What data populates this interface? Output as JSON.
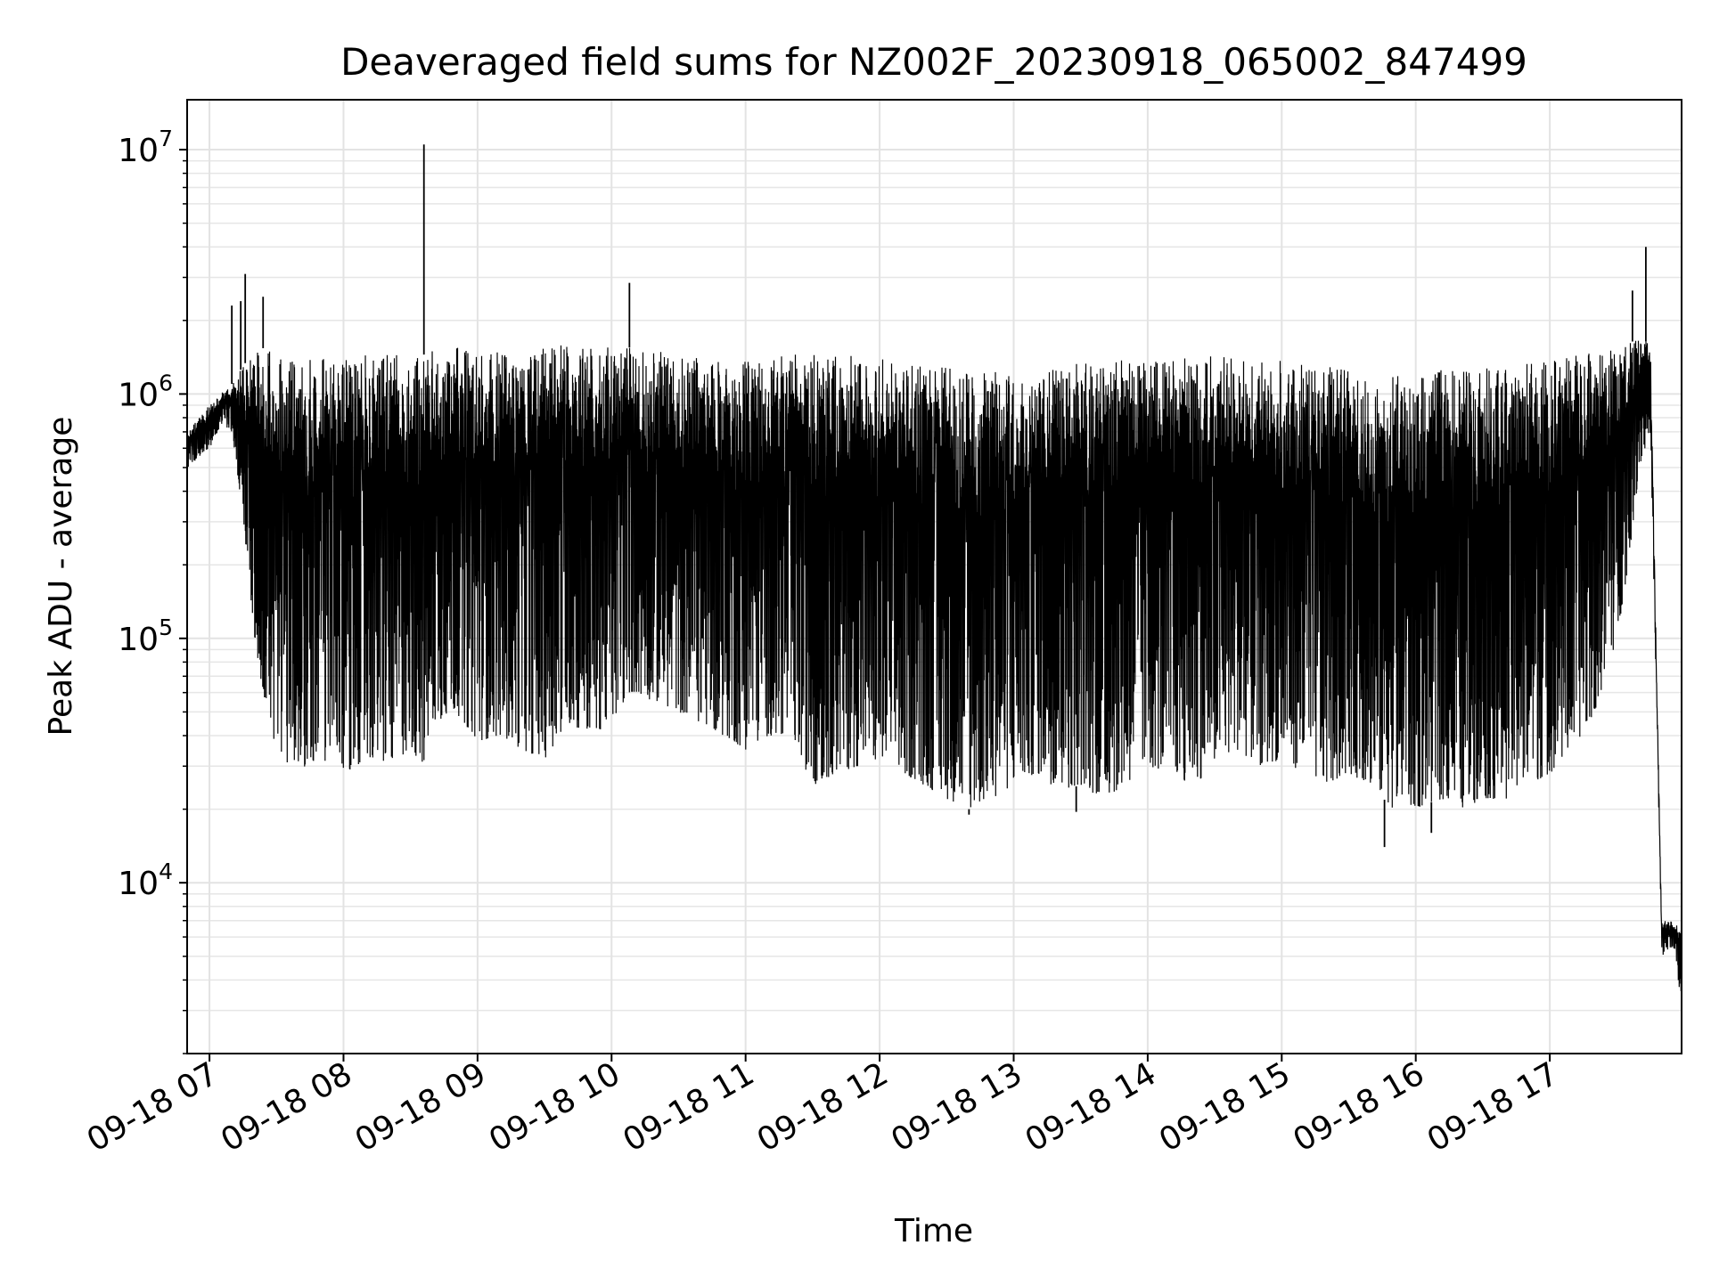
{
  "chart_data": {
    "type": "line",
    "title": "Deaveraged field sums for NZ002F_20230918_065002_847499",
    "xlabel": "Time",
    "ylabel": "Peak ADU - average",
    "yscale": "log",
    "ylim": [
      2000,
      16000000
    ],
    "xlim": [
      "2023-09-18 06:50:00",
      "2023-09-18 17:59:00"
    ],
    "grid": true,
    "legend": "none",
    "line_color": "#000000",
    "x_ticks": [
      "2023-09-18 07:00",
      "2023-09-18 08:00",
      "2023-09-18 09:00",
      "2023-09-18 10:00",
      "2023-09-18 11:00",
      "2023-09-18 12:00",
      "2023-09-18 13:00",
      "2023-09-18 14:00",
      "2023-09-18 15:00",
      "2023-09-18 16:00",
      "2023-09-18 17:00"
    ],
    "x_tick_labels": [
      "09-18 07",
      "09-18 08",
      "09-18 09",
      "09-18 10",
      "09-18 11",
      "09-18 12",
      "09-18 13",
      "09-18 14",
      "09-18 15",
      "09-18 16",
      "09-18 17"
    ],
    "y_ticks": [
      10000,
      100000,
      1000000,
      10000000
    ],
    "y_tick_labels": [
      {
        "base": "10",
        "exp": "4"
      },
      {
        "base": "10",
        "exp": "5"
      },
      {
        "base": "10",
        "exp": "6"
      },
      {
        "base": "10",
        "exp": "7"
      }
    ],
    "series": [
      {
        "x": [
          "2023-09-18 06:50",
          "2023-09-18 06:55",
          "2023-09-18 07:00",
          "2023-09-18 07:05",
          "2023-09-18 07:10",
          "2023-09-18 07:15",
          "2023-09-18 07:20",
          "2023-09-18 07:25",
          "2023-09-18 07:30",
          "2023-09-18 07:35",
          "2023-09-18 07:40",
          "2023-09-18 07:45",
          "2023-09-18 07:50",
          "2023-09-18 07:55",
          "2023-09-18 08:00",
          "2023-09-18 08:10",
          "2023-09-18 08:20",
          "2023-09-18 08:30",
          "2023-09-18 08:36",
          "2023-09-18 08:40",
          "2023-09-18 08:50",
          "2023-09-18 09:00",
          "2023-09-18 09:10",
          "2023-09-18 09:20",
          "2023-09-18 09:30",
          "2023-09-18 09:40",
          "2023-09-18 09:50",
          "2023-09-18 10:00",
          "2023-09-18 10:08",
          "2023-09-18 10:20",
          "2023-09-18 10:30",
          "2023-09-18 10:40",
          "2023-09-18 10:50",
          "2023-09-18 11:00",
          "2023-09-18 11:10",
          "2023-09-18 11:20",
          "2023-09-18 11:30",
          "2023-09-18 11:40",
          "2023-09-18 11:50",
          "2023-09-18 12:00",
          "2023-09-18 12:10",
          "2023-09-18 12:20",
          "2023-09-18 12:30",
          "2023-09-18 12:40",
          "2023-09-18 12:50",
          "2023-09-18 13:00",
          "2023-09-18 13:10",
          "2023-09-18 13:20",
          "2023-09-18 13:30",
          "2023-09-18 13:40",
          "2023-09-18 13:50",
          "2023-09-18 14:00",
          "2023-09-18 14:10",
          "2023-09-18 14:20",
          "2023-09-18 14:30",
          "2023-09-18 14:40",
          "2023-09-18 14:50",
          "2023-09-18 15:00",
          "2023-09-18 15:10",
          "2023-09-18 15:20",
          "2023-09-18 15:30",
          "2023-09-18 15:40",
          "2023-09-18 15:50",
          "2023-09-18 16:00",
          "2023-09-18 16:10",
          "2023-09-18 16:20",
          "2023-09-18 16:30",
          "2023-09-18 16:40",
          "2023-09-18 16:50",
          "2023-09-18 17:00",
          "2023-09-18 17:10",
          "2023-09-18 17:20",
          "2023-09-18 17:30",
          "2023-09-18 17:35",
          "2023-09-18 17:40",
          "2023-09-18 17:45",
          "2023-09-18 17:50",
          "2023-09-18 17:55",
          "2023-09-18 17:59"
        ],
        "low": [
          500000,
          550000,
          600000,
          750000,
          700000,
          300000,
          100000,
          50000,
          35000,
          30000,
          28000,
          32000,
          30000,
          30000,
          28000,
          32000,
          30000,
          35000,
          30000,
          45000,
          50000,
          38000,
          40000,
          35000,
          32000,
          45000,
          40000,
          45000,
          60000,
          55000,
          50000,
          45000,
          40000,
          35000,
          40000,
          40000,
          25000,
          28000,
          30000,
          30000,
          28000,
          25000,
          22000,
          20000,
          22000,
          25000,
          28000,
          24000,
          25000,
          22000,
          25000,
          30000,
          28000,
          25000,
          30000,
          35000,
          30000,
          32000,
          28000,
          25000,
          28000,
          25000,
          20000,
          20000,
          22000,
          20000,
          22000,
          22000,
          25000,
          28000,
          35000,
          50000,
          100000,
          200000,
          500000,
          700000,
          5000,
          5500,
          3000
        ],
        "high": [
          700000,
          800000,
          900000,
          1000000,
          1100000,
          1300000,
          1500000,
          1550000,
          1500000,
          1450000,
          1400000,
          1400000,
          1450000,
          1450000,
          1400000,
          1450000,
          1500000,
          1500000,
          1450000,
          1500000,
          1550000,
          1550000,
          1500000,
          1500000,
          1550000,
          1600000,
          1600000,
          1550000,
          1550000,
          1500000,
          1450000,
          1400000,
          1350000,
          1400000,
          1400000,
          1450000,
          1450000,
          1500000,
          1450000,
          1400000,
          1350000,
          1300000,
          1300000,
          1250000,
          1250000,
          1200000,
          1250000,
          1300000,
          1350000,
          1350000,
          1400000,
          1400000,
          1400000,
          1450000,
          1450000,
          1450000,
          1400000,
          1400000,
          1350000,
          1300000,
          1250000,
          1200000,
          1200000,
          1200000,
          1250000,
          1250000,
          1300000,
          1300000,
          1350000,
          1400000,
          1450000,
          1500000,
          1550000,
          1600000,
          1700000,
          1600000,
          7000,
          7000,
          6500
        ]
      }
    ],
    "spikes": [
      {
        "x": "2023-09-18 07:10",
        "y": 2300000
      },
      {
        "x": "2023-09-18 07:14",
        "y": 2400000
      },
      {
        "x": "2023-09-18 07:16",
        "y": 3100000
      },
      {
        "x": "2023-09-18 07:24",
        "y": 2500000
      },
      {
        "x": "2023-09-18 08:36",
        "y": 10500000
      },
      {
        "x": "2023-09-18 10:08",
        "y": 2850000
      },
      {
        "x": "2023-09-18 17:37",
        "y": 2650000
      },
      {
        "x": "2023-09-18 17:43",
        "y": 4000000
      }
    ],
    "dips": [
      {
        "x": "2023-09-18 15:46",
        "y": 14000
      },
      {
        "x": "2023-09-18 12:40",
        "y": 19000
      },
      {
        "x": "2023-09-18 13:28",
        "y": 19500
      },
      {
        "x": "2023-09-18 16:07",
        "y": 16000
      }
    ]
  }
}
